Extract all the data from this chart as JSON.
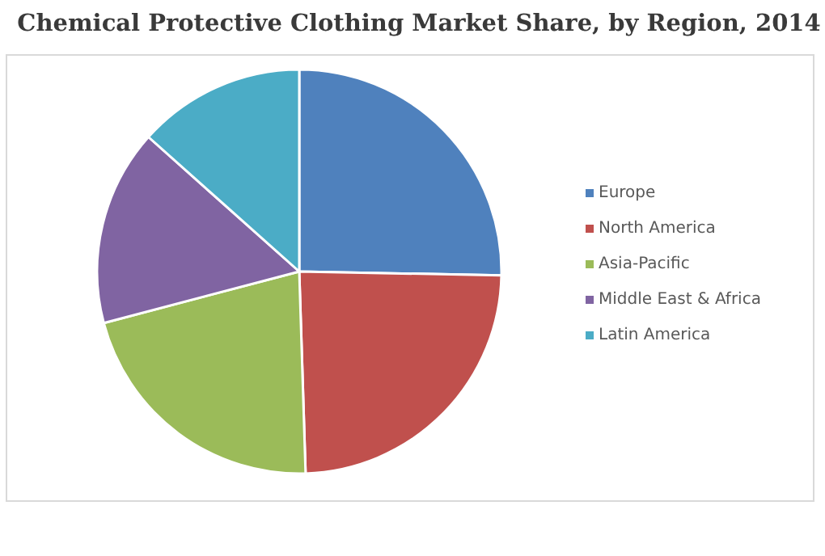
{
  "chart_data": {
    "type": "pie",
    "title": "Chemical Protective Clothing Market Share, by Region, 2014",
    "categories": [
      "Europe",
      "North America",
      "Asia-Pacific",
      "Middle East & Africa",
      "Latin America"
    ],
    "values": [
      25.3,
      24.2,
      21.4,
      15.7,
      13.4
    ],
    "colors": [
      "#4f81bd",
      "#c0504d",
      "#9bbb59",
      "#8064a2",
      "#4bacc6"
    ],
    "legend": "right"
  }
}
